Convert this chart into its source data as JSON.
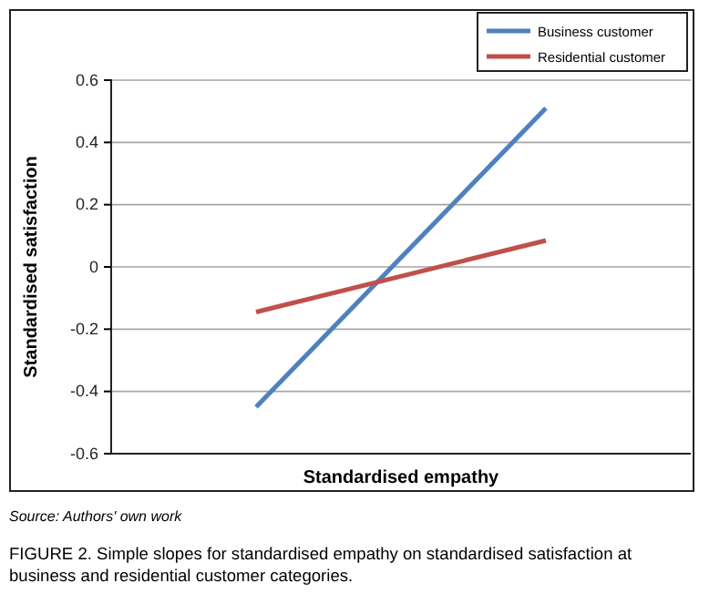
{
  "chart_data": {
    "type": "line",
    "xlabel": "Standardised empathy",
    "ylabel": "Standardised satisfaction",
    "categories": [
      null,
      null
    ],
    "series": [
      {
        "name": "Business customer",
        "color": "#4f81bd",
        "values": [
          -0.45,
          0.51
        ]
      },
      {
        "name": "Residential customer",
        "color": "#c0504d",
        "values": [
          -0.145,
          0.085
        ]
      }
    ],
    "ylim": [
      -0.6,
      0.6
    ],
    "yticks": [
      -0.6,
      -0.4,
      -0.2,
      0,
      0.2,
      0.4,
      0.6
    ],
    "grid": "y",
    "legend": "top right",
    "marker": "none",
    "line_style": "solid",
    "annotations": [
      "Source: Authors' own work",
      "FIGURE 2. Simple slopes for standardised empathy on standardised satisfaction at business and residential customer categories."
    ]
  }
}
